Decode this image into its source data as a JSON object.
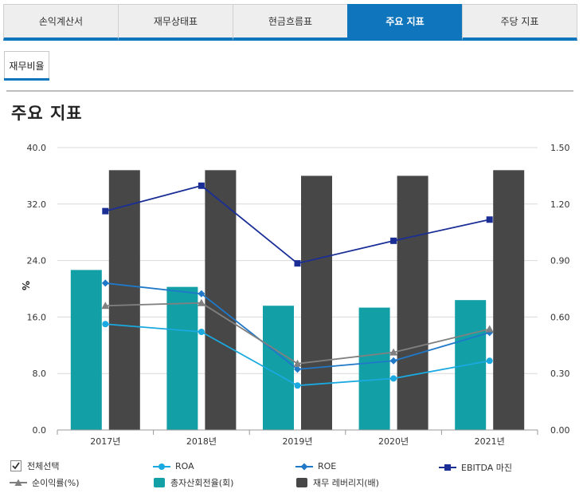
{
  "tabs": [
    {
      "label": "손익계산서",
      "active": false
    },
    {
      "label": "재무상태표",
      "active": false
    },
    {
      "label": "현금흐름표",
      "active": false
    },
    {
      "label": "주요 지표",
      "active": true
    },
    {
      "label": "주당 지표",
      "active": false
    }
  ],
  "subtab": {
    "label": "재무비율"
  },
  "page_title": "주요 지표",
  "colors": {
    "tab_accent": "#0f75bc",
    "roa": "#1aa9e0",
    "roe": "#1f78c8",
    "ebitda": "#1a2e96",
    "net_margin": "#808080",
    "asset_turnover": "#12a0a6",
    "leverage": "#474747"
  },
  "legend": {
    "select_all": "전체선택",
    "roa": "ROA",
    "roe": "ROE",
    "ebitda": "EBITDA 마진",
    "net_margin": "순이익률(%)",
    "asset_turnover": "총자산회전율(회)",
    "leverage": "재무 레버리지(배)"
  },
  "chart_data": {
    "type": "bar",
    "categories": [
      "2017년",
      "2018년",
      "2019년",
      "2020년",
      "2021년"
    ],
    "ylabel": "%",
    "ylim": [
      0,
      40
    ],
    "y_ticks": [
      "0.0",
      "8.0",
      "16.0",
      "24.0",
      "32.0",
      "40.0"
    ],
    "y2lim": [
      0,
      1.5
    ],
    "y2_ticks": [
      "0.00",
      "0.30",
      "0.60",
      "0.90",
      "1.20",
      "1.50"
    ],
    "grid": true,
    "legend_position": "bottom",
    "series": [
      {
        "name": "총자산회전율(회)",
        "kind": "bar",
        "axis": "right",
        "values": [
          0.85,
          0.76,
          0.66,
          0.65,
          0.69
        ]
      },
      {
        "name": "재무 레버리지(배)",
        "kind": "bar",
        "axis": "right",
        "values": [
          1.38,
          1.38,
          1.35,
          1.35,
          1.38
        ]
      },
      {
        "name": "ROA",
        "kind": "line",
        "axis": "left",
        "marker": "circle",
        "values": [
          15.0,
          13.9,
          6.3,
          7.3,
          9.8
        ]
      },
      {
        "name": "ROE",
        "kind": "line",
        "axis": "left",
        "marker": "diamond",
        "values": [
          20.8,
          19.3,
          8.6,
          9.8,
          13.8
        ]
      },
      {
        "name": "순이익률(%)",
        "kind": "line",
        "axis": "left",
        "marker": "triangle",
        "values": [
          17.6,
          18.0,
          9.4,
          11.0,
          14.3
        ]
      },
      {
        "name": "EBITDA 마진",
        "kind": "line",
        "axis": "left",
        "marker": "square",
        "values": [
          31.0,
          34.6,
          23.6,
          26.8,
          29.8
        ]
      }
    ]
  }
}
